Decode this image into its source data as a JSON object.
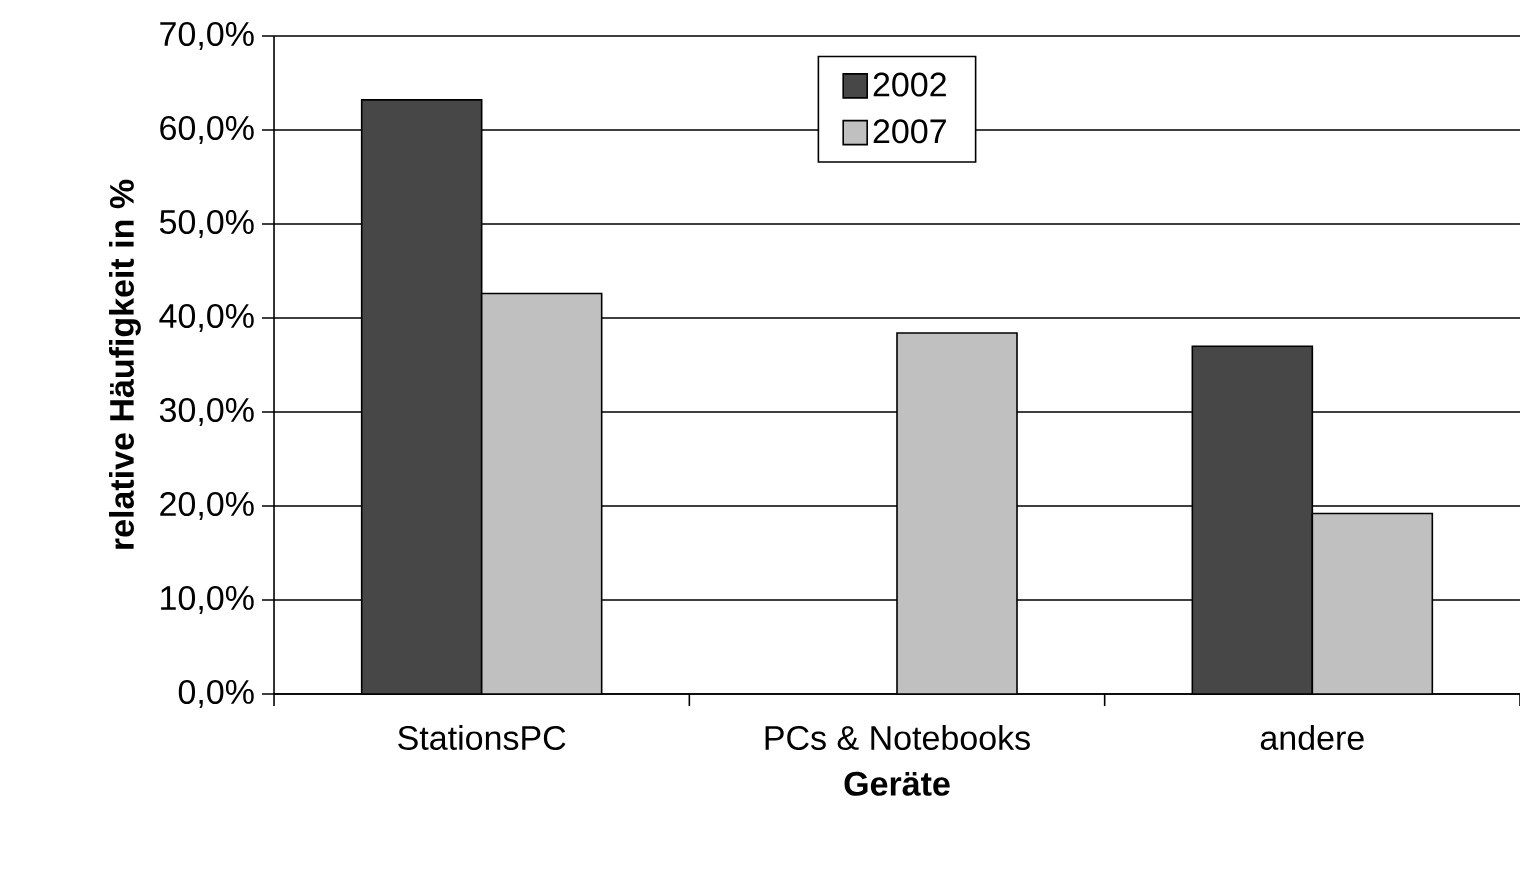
{
  "chart_data": {
    "type": "bar",
    "xlabel": "Geräte",
    "ylabel": "relative Häufigkeit in %",
    "categories": [
      "StationsPC",
      "PCs & Notebooks",
      "andere"
    ],
    "series": [
      {
        "name": "2002",
        "color": "#474747",
        "values": [
          63.2,
          null,
          37.0
        ]
      },
      {
        "name": "2007",
        "color": "#c0c0c0",
        "values": [
          42.6,
          38.4,
          19.2
        ]
      }
    ],
    "ylim": [
      0,
      70
    ],
    "yticks": [
      {
        "value": 0,
        "label": "0,0%"
      },
      {
        "value": 10,
        "label": "10,0%"
      },
      {
        "value": 20,
        "label": "20,0%"
      },
      {
        "value": 30,
        "label": "30,0%"
      },
      {
        "value": 40,
        "label": "40,0%"
      },
      {
        "value": 50,
        "label": "50,0%"
      },
      {
        "value": 60,
        "label": "60,0%"
      },
      {
        "value": 70,
        "label": "70,0%"
      }
    ],
    "grid": "y",
    "legend": "top"
  }
}
